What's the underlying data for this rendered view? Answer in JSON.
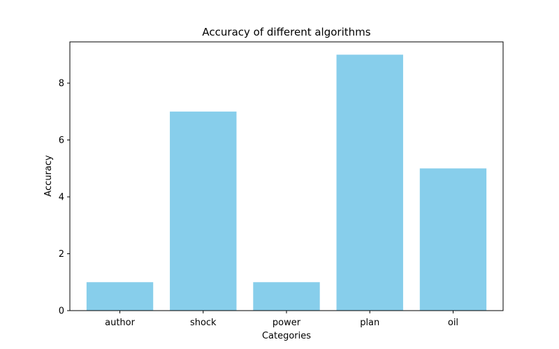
{
  "chart_data": {
    "type": "bar",
    "title": "Accuracy of different algorithms",
    "xlabel": "Categories",
    "ylabel": "Accuracy",
    "categories": [
      "author",
      "shock",
      "power",
      "plan",
      "oil"
    ],
    "values": [
      1,
      7,
      1,
      9,
      5
    ],
    "ylim": [
      0,
      9.45
    ],
    "yticks": [
      0,
      2,
      4,
      6,
      8
    ],
    "ytick_labels": [
      "0",
      "2",
      "4",
      "6",
      "8"
    ],
    "grid": false,
    "legend": "none",
    "bar_color": "#87ceeb",
    "axis_color": "#000000"
  }
}
